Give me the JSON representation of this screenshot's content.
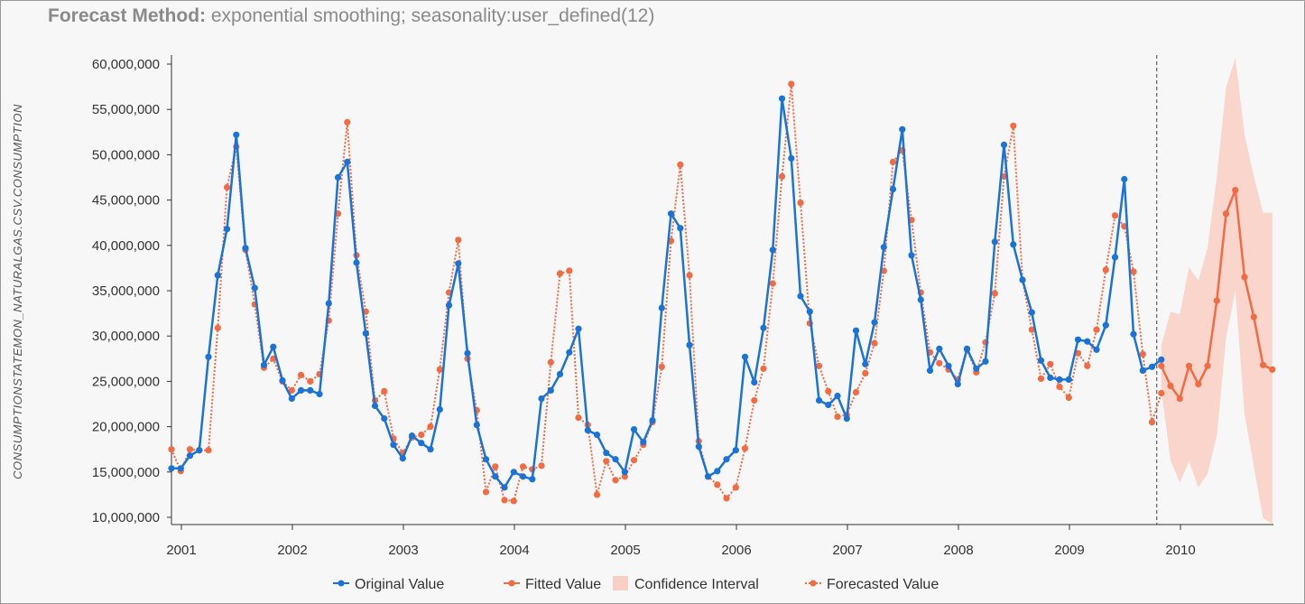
{
  "title": {
    "prefix": "Forecast Method:",
    "text": "exponential smoothing; seasonality:user_defined(12)"
  },
  "colors": {
    "original": "#1a73d6",
    "fitted": "#f26b43",
    "confidence": "#f9cfc4",
    "forecast": "#f26b43",
    "background": "#f7f7f7"
  },
  "chart_data": {
    "type": "line",
    "title": "Forecast Method: exponential smoothing; seasonality:user_defined(12)",
    "xlabel": "",
    "ylabel": "CONSUMPTIONSTATEMON_NATURALGAS.CSV.CONSUMPTION",
    "ylim": [
      10000000,
      60000000
    ],
    "y_ticks": [
      10000000,
      15000000,
      20000000,
      25000000,
      30000000,
      35000000,
      40000000,
      45000000,
      50000000,
      55000000,
      60000000
    ],
    "y_tick_labels": [
      "10,000,000",
      "15,000,000",
      "20,000,000",
      "25,000,000",
      "30,000,000",
      "35,000,000",
      "40,000,000",
      "45,000,000",
      "50,000,000",
      "55,000,000",
      "60,000,000"
    ],
    "x_tick_labels": [
      "2001",
      "2002",
      "2003",
      "2004",
      "2005",
      "2006",
      "2007",
      "2008",
      "2009",
      "2010"
    ],
    "start_year": 2001,
    "forecast_start_index": 107,
    "series": [
      {
        "name": "Original Value",
        "values": [
          15.4,
          15.4,
          16.8,
          17.4,
          27.7,
          36.7,
          41.8,
          52.2,
          39.7,
          35.3,
          26.8,
          28.8,
          25.1,
          23.1,
          24.0,
          24.0,
          23.6,
          33.6,
          47.5,
          49.2,
          38.1,
          30.3,
          22.3,
          20.9,
          18.0,
          16.5,
          19.0,
          18.2,
          17.5,
          21.9,
          33.4,
          38.0,
          28.1,
          20.2,
          16.4,
          14.5,
          13.3,
          15.0,
          14.5,
          14.2,
          23.1,
          24.0,
          25.8,
          28.2,
          30.8,
          19.6,
          19.1,
          17.1,
          16.4,
          15.0,
          19.7,
          18.3,
          20.7,
          33.1,
          43.5,
          41.9,
          29.0,
          17.8,
          14.5,
          15.1,
          16.4,
          17.4,
          27.7,
          24.9,
          30.9,
          39.5,
          56.2,
          49.6,
          34.4,
          32.7,
          22.9,
          22.4,
          23.4,
          20.9,
          30.6,
          26.9,
          31.5,
          39.8,
          46.2,
          52.8,
          38.9,
          34.0,
          26.2,
          28.6,
          26.7,
          24.7,
          28.6,
          26.4,
          27.2,
          40.4,
          51.1,
          40.1,
          36.2,
          32.6,
          27.3,
          25.4,
          25.2,
          25.2,
          29.6,
          29.4,
          28.5,
          31.2,
          38.7,
          47.3,
          30.2,
          26.2,
          26.6,
          27.4
        ]
      },
      {
        "name": "Fitted Value",
        "values": [
          17.5,
          15.1,
          17.5,
          17.4,
          17.4,
          30.9,
          46.4,
          50.9,
          39.5,
          33.5,
          26.5,
          27.5,
          25.0,
          24.0,
          25.7,
          25.0,
          25.8,
          31.7,
          43.5,
          53.6,
          38.9,
          32.7,
          22.9,
          23.9,
          18.7,
          17.1,
          18.8,
          19.1,
          20.0,
          26.3,
          34.8,
          40.6,
          27.5,
          21.8,
          12.8,
          15.6,
          11.9,
          11.8,
          15.6,
          15.3,
          15.7,
          27.1,
          36.9,
          37.2,
          21.0,
          20.2,
          12.5,
          16.2,
          14.1,
          14.5,
          16.3,
          18.0,
          20.5,
          26.6,
          40.5,
          48.9,
          36.7,
          18.4,
          14.5,
          13.6,
          12.1,
          13.3,
          17.6,
          22.9,
          26.4,
          35.8,
          47.6,
          57.8,
          44.7,
          31.4,
          26.7,
          23.9,
          21.1,
          21.3,
          23.8,
          25.9,
          29.2,
          37.2,
          49.2,
          50.5,
          42.8,
          34.8,
          28.2,
          27.0,
          26.3,
          25.2,
          28.5,
          26.0,
          29.3,
          34.7,
          47.6,
          53.2,
          36.2,
          30.7,
          25.3,
          26.9,
          24.4,
          23.2,
          28.1,
          26.7,
          30.7,
          37.3,
          43.3,
          42.1,
          37.1,
          28.0,
          20.5,
          23.7
        ]
      },
      {
        "name": "Forecasted Value",
        "values": [
          26.7,
          24.5,
          23.1,
          26.7,
          24.7,
          26.7,
          33.9,
          43.5,
          46.1,
          36.5,
          32.1,
          26.8,
          26.3
        ]
      },
      {
        "name": "Confidence Interval",
        "lower": [
          24.0,
          16.3,
          13.8,
          16.2,
          13.3,
          14.8,
          19.0,
          29.8,
          35.0,
          21.4,
          15.6,
          9.9,
          9.3
        ],
        "upper": [
          29.0,
          32.7,
          32.4,
          37.6,
          36.1,
          39.7,
          47.6,
          57.4,
          60.7,
          52.2,
          47.6,
          43.6,
          43.6
        ]
      }
    ],
    "value_unit_multiplier": 1000000,
    "legend": [
      "Original Value",
      "Fitted Value",
      "Confidence Interval",
      "Forecasted Value"
    ],
    "legend_position": "bottom",
    "grid": false
  }
}
